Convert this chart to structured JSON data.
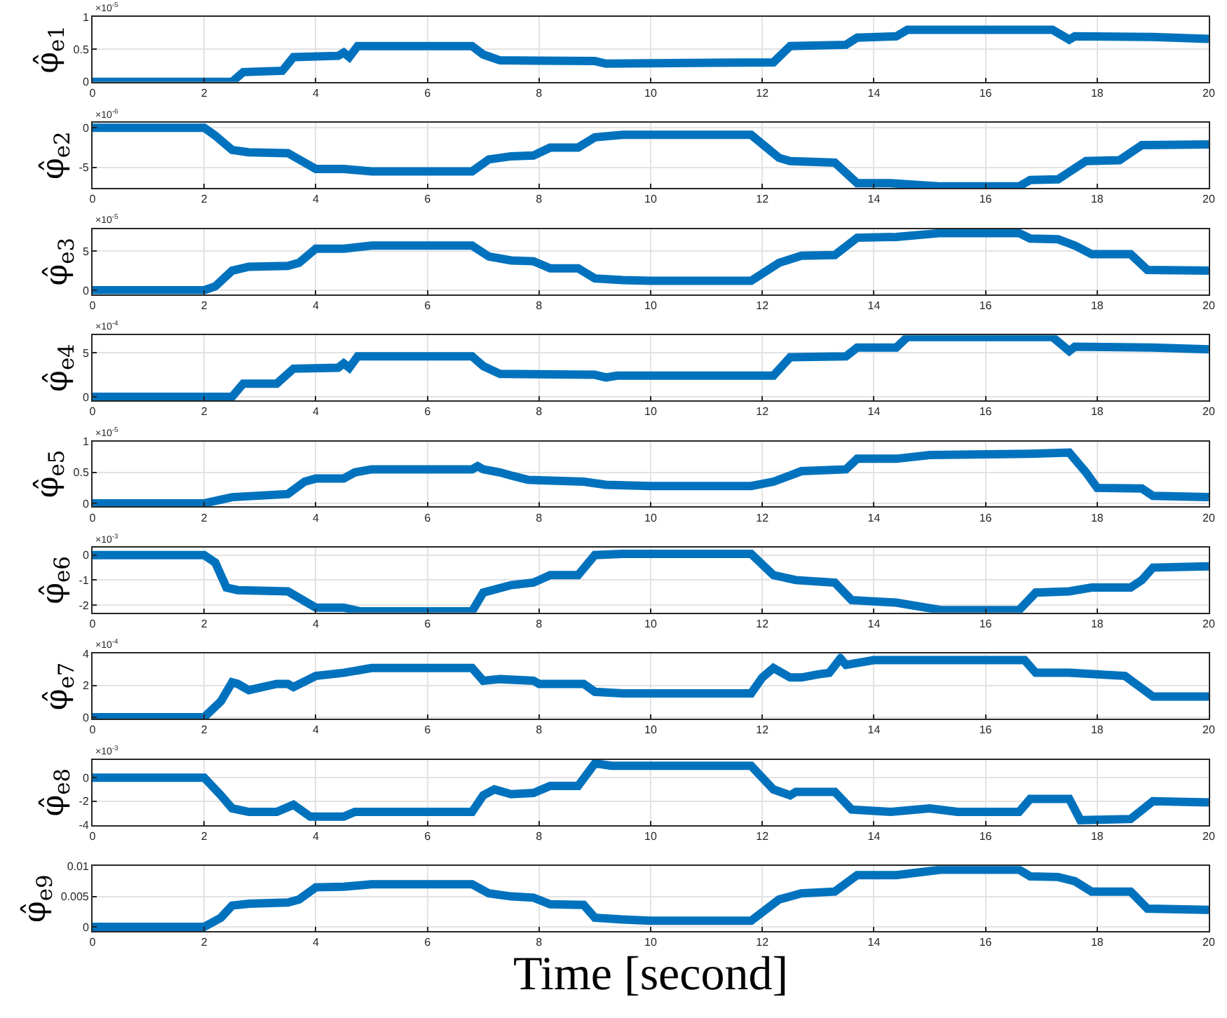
{
  "chart_data": [
    {
      "type": "line",
      "ylabel": "φ̂$_{e1}$",
      "annotations": [
        "×10$^{-5}$"
      ],
      "xlim": [
        0,
        20
      ],
      "xticks": [
        0,
        2,
        4,
        6,
        8,
        10,
        12,
        14,
        16,
        18,
        20
      ],
      "ylim": [
        0,
        1
      ],
      "yticks": [
        0,
        0.5,
        1
      ],
      "grid": true,
      "tick_labels": true,
      "x": [
        0,
        2.5,
        2.7,
        3.4,
        3.6,
        4.4,
        4.5,
        4.6,
        4.75,
        6.8,
        7.0,
        7.3,
        9.0,
        9.2,
        12.2,
        12.5,
        13.5,
        13.7,
        14.4,
        14.6,
        17.2,
        17.5,
        17.6,
        19,
        20
      ],
      "series": [
        {
          "color": "#0072bd",
          "values": [
            0,
            0,
            0.15,
            0.17,
            0.38,
            0.4,
            0.45,
            0.38,
            0.55,
            0.55,
            0.42,
            0.33,
            0.32,
            0.28,
            0.3,
            0.55,
            0.57,
            0.68,
            0.7,
            0.8,
            0.8,
            0.65,
            0.7,
            0.69,
            0.66
          ]
        }
      ]
    },
    {
      "type": "line",
      "ylabel": "φ̂$_{e2}$",
      "annotations": [
        "×10$^{-6}$"
      ],
      "xlim": [
        0,
        20
      ],
      "xticks": [
        0,
        2,
        4,
        6,
        8,
        10,
        12,
        14,
        16,
        18,
        20
      ],
      "ylim": [
        -7.6,
        0.6
      ],
      "yticks": [
        -5,
        0
      ],
      "grid": true,
      "x": [
        0,
        2.0,
        2.2,
        2.5,
        2.8,
        3.5,
        4,
        4.5,
        5,
        6.8,
        7.1,
        7.5,
        7.9,
        8.2,
        8.7,
        9.0,
        9.5,
        11.8,
        12.3,
        12.5,
        13.3,
        13.7,
        14.3,
        15.2,
        16.6,
        16.8,
        17.3,
        17.8,
        18.4,
        18.8,
        20
      ],
      "series": [
        {
          "color": "#0072bd",
          "values": [
            0,
            0,
            -1,
            -2.8,
            -3.1,
            -3.2,
            -5.2,
            -5.2,
            -5.5,
            -5.5,
            -4,
            -3.6,
            -3.5,
            -2.5,
            -2.5,
            -1.2,
            -0.9,
            -0.9,
            -3.8,
            -4.2,
            -4.4,
            -7,
            -7,
            -7.4,
            -7.4,
            -6.6,
            -6.5,
            -4.2,
            -4.1,
            -2.2,
            -2.1
          ]
        }
      ]
    },
    {
      "type": "line",
      "ylabel": "φ̂$_{e3}$",
      "annotations": [
        "×10$^{-5}$"
      ],
      "xlim": [
        0,
        20
      ],
      "xticks": [
        0,
        2,
        4,
        6,
        8,
        10,
        12,
        14,
        16,
        18,
        20
      ],
      "ylim": [
        -0.5,
        7.8
      ],
      "yticks": [
        0,
        5
      ],
      "grid": true,
      "x": [
        0,
        2.0,
        2.2,
        2.5,
        2.8,
        3.5,
        3.7,
        4,
        4.5,
        5,
        6.8,
        7.1,
        7.5,
        7.9,
        8.2,
        8.7,
        9.0,
        9.5,
        10,
        11.8,
        12.3,
        12.7,
        13.3,
        13.7,
        14.4,
        15.2,
        16.6,
        16.8,
        17.3,
        17.6,
        17.9,
        18.6,
        18.9,
        20
      ],
      "series": [
        {
          "color": "#0072bd",
          "values": [
            0,
            0,
            0.5,
            2.5,
            3,
            3.1,
            3.5,
            5.3,
            5.3,
            5.7,
            5.7,
            4.3,
            3.8,
            3.7,
            2.8,
            2.8,
            1.5,
            1.3,
            1.2,
            1.2,
            3.5,
            4.4,
            4.5,
            6.7,
            6.8,
            7.3,
            7.3,
            6.6,
            6.5,
            5.7,
            4.6,
            4.6,
            2.6,
            2.5
          ]
        }
      ]
    },
    {
      "type": "line",
      "ylabel": "φ̂$_{e4}$",
      "annotations": [
        "×10$^{-4}$"
      ],
      "xlim": [
        0,
        20
      ],
      "xticks": [
        0,
        2,
        4,
        6,
        8,
        10,
        12,
        14,
        16,
        18,
        20
      ],
      "ylim": [
        -0.4,
        7
      ],
      "yticks": [
        0,
        5
      ],
      "grid": true,
      "x": [
        0,
        2.5,
        2.7,
        3.3,
        3.6,
        4.4,
        4.5,
        4.6,
        4.75,
        6.8,
        7.0,
        7.3,
        9.0,
        9.2,
        9.4,
        12.2,
        12.5,
        13.5,
        13.7,
        14.4,
        14.6,
        17.2,
        17.5,
        17.6,
        19,
        20
      ],
      "series": [
        {
          "color": "#0072bd",
          "values": [
            0,
            0,
            1.5,
            1.5,
            3.2,
            3.3,
            3.8,
            3.3,
            4.6,
            4.6,
            3.5,
            2.6,
            2.5,
            2.2,
            2.4,
            2.4,
            4.5,
            4.6,
            5.6,
            5.6,
            6.8,
            6.8,
            5.2,
            5.7,
            5.6,
            5.4
          ]
        }
      ]
    },
    {
      "type": "line",
      "ylabel": "φ̂$_{e5}$",
      "annotations": [
        "×10$^{-5}$"
      ],
      "xlim": [
        0,
        20
      ],
      "xticks": [
        0,
        2,
        4,
        6,
        8,
        10,
        12,
        14,
        16,
        18,
        20
      ],
      "ylim": [
        -0.05,
        1
      ],
      "yticks": [
        0,
        0.5,
        1
      ],
      "grid": true,
      "x": [
        0,
        2,
        2.5,
        3.5,
        3.8,
        4,
        4.5,
        4.7,
        5,
        6.8,
        6.9,
        7,
        7.3,
        7.5,
        7.8,
        8.8,
        9.2,
        10,
        11.8,
        12.2,
        12.5,
        12.7,
        13.5,
        13.7,
        14.4,
        15,
        16.8,
        17.5,
        17.8,
        18,
        18.8,
        19,
        20
      ],
      "series": [
        {
          "color": "#0072bd",
          "values": [
            0,
            0,
            0.1,
            0.15,
            0.35,
            0.4,
            0.4,
            0.5,
            0.55,
            0.55,
            0.6,
            0.55,
            0.5,
            0.45,
            0.38,
            0.35,
            0.3,
            0.28,
            0.28,
            0.35,
            0.45,
            0.52,
            0.55,
            0.72,
            0.72,
            0.78,
            0.8,
            0.82,
            0.5,
            0.25,
            0.24,
            0.12,
            0.1
          ]
        }
      ]
    },
    {
      "type": "line",
      "ylabel": "φ̂$_{e6}$",
      "annotations": [
        "×10$^{-3}$"
      ],
      "xlim": [
        0,
        20
      ],
      "xticks": [
        0,
        2,
        4,
        6,
        8,
        10,
        12,
        14,
        16,
        18,
        20
      ],
      "ylim": [
        -2.3,
        0.3
      ],
      "yticks": [
        -2,
        -1,
        0
      ],
      "grid": true,
      "x": [
        0,
        2.0,
        2.2,
        2.4,
        2.6,
        3.5,
        4,
        4.5,
        4.8,
        6.8,
        7,
        7.5,
        7.9,
        8.2,
        8.7,
        9.0,
        9.5,
        11.8,
        12.2,
        12.6,
        13.3,
        13.6,
        14.4,
        15.2,
        16.6,
        16.9,
        17.5,
        17.9,
        18.6,
        18.8,
        19,
        20
      ],
      "series": [
        {
          "color": "#0072bd",
          "values": [
            0,
            0,
            -0.3,
            -1.3,
            -1.4,
            -1.45,
            -2.1,
            -2.1,
            -2.25,
            -2.25,
            -1.5,
            -1.2,
            -1.1,
            -0.8,
            -0.8,
            0,
            0.05,
            0.05,
            -0.8,
            -1,
            -1.1,
            -1.8,
            -1.9,
            -2.2,
            -2.2,
            -1.5,
            -1.45,
            -1.3,
            -1.3,
            -1.0,
            -0.5,
            -0.45
          ]
        }
      ]
    },
    {
      "type": "line",
      "ylabel": "φ̂$_{e7}$",
      "annotations": [
        "×10$^{-4}$"
      ],
      "xlim": [
        0,
        20
      ],
      "xticks": [
        0,
        2,
        4,
        6,
        8,
        10,
        12,
        14,
        16,
        18,
        20
      ],
      "ylim": [
        -0.1,
        4
      ],
      "yticks": [
        0,
        2,
        4
      ],
      "grid": true,
      "x": [
        0,
        2,
        2.3,
        2.5,
        2.6,
        2.8,
        3.3,
        3.5,
        3.6,
        4,
        4.5,
        5,
        6.8,
        7,
        7.3,
        7.9,
        8.0,
        8.8,
        9,
        9.5,
        11.8,
        12,
        12.2,
        12.5,
        12.7,
        13,
        13.2,
        13.4,
        13.5,
        14,
        16.7,
        16.9,
        17.5,
        18.5,
        19,
        20
      ],
      "series": [
        {
          "color": "#0072bd",
          "values": [
            0,
            0,
            1,
            2.2,
            2.1,
            1.7,
            2.1,
            2.1,
            1.9,
            2.6,
            2.8,
            3.1,
            3.1,
            2.3,
            2.4,
            2.3,
            2.1,
            2.1,
            1.6,
            1.5,
            1.5,
            2.5,
            3.1,
            2.5,
            2.5,
            2.7,
            2.8,
            3.7,
            3.3,
            3.6,
            3.6,
            2.8,
            2.8,
            2.6,
            1.3,
            1.3
          ]
        }
      ]
    },
    {
      "type": "line",
      "ylabel": "φ̂$_{e8}$",
      "annotations": [
        "×10$^{-3}$"
      ],
      "xlim": [
        0,
        20
      ],
      "xticks": [
        0,
        2,
        4,
        6,
        8,
        10,
        12,
        14,
        16,
        18,
        20
      ],
      "ylim": [
        -4,
        1.5
      ],
      "yticks": [
        -4,
        -2,
        0
      ],
      "grid": true,
      "x": [
        0,
        2,
        2.3,
        2.5,
        2.8,
        3.3,
        3.6,
        3.9,
        4.5,
        4.7,
        6.8,
        7,
        7.2,
        7.5,
        7.9,
        8.2,
        8.7,
        9,
        9.3,
        11.8,
        12.2,
        12.5,
        12.6,
        13.3,
        13.6,
        14.3,
        15,
        15.5,
        16.6,
        16.8,
        17.5,
        17.7,
        18.6,
        19,
        20
      ],
      "series": [
        {
          "color": "#0072bd",
          "values": [
            0,
            0,
            -1.5,
            -2.6,
            -2.9,
            -2.9,
            -2.3,
            -3.3,
            -3.3,
            -2.9,
            -2.9,
            -1.5,
            -1.0,
            -1.4,
            -1.3,
            -0.7,
            -0.7,
            1.2,
            1.0,
            1.0,
            -1.0,
            -1.5,
            -1.2,
            -1.2,
            -2.7,
            -2.9,
            -2.6,
            -2.9,
            -2.9,
            -1.8,
            -1.8,
            -3.6,
            -3.5,
            -2.0,
            -2.1
          ]
        }
      ]
    },
    {
      "type": "line",
      "ylabel": "φ̂$_{e9}$",
      "xlabel": "Time [second]",
      "xlim": [
        0,
        20
      ],
      "xticks": [
        0,
        2,
        4,
        6,
        8,
        10,
        12,
        14,
        16,
        18,
        20
      ],
      "ylim": [
        -0.0007,
        0.01
      ],
      "yticks": [
        0,
        0.005,
        0.01
      ],
      "grid": true,
      "x": [
        0,
        2,
        2.3,
        2.5,
        2.8,
        3.5,
        3.7,
        4,
        4.5,
        5,
        6.8,
        7.1,
        7.5,
        7.9,
        8.2,
        8.8,
        9.0,
        9.5,
        10,
        11.8,
        12.3,
        12.7,
        13.3,
        13.7,
        14.4,
        15.2,
        16.6,
        16.8,
        17.3,
        17.6,
        17.9,
        18.6,
        18.9,
        20
      ],
      "series": [
        {
          "color": "#0072bd",
          "values": [
            0,
            0,
            0.0015,
            0.0035,
            0.0038,
            0.004,
            0.0045,
            0.0065,
            0.0066,
            0.007,
            0.007,
            0.0055,
            0.005,
            0.0048,
            0.0037,
            0.0036,
            0.0015,
            0.0012,
            0.001,
            0.001,
            0.0045,
            0.0055,
            0.0058,
            0.0085,
            0.0085,
            0.0094,
            0.0094,
            0.0083,
            0.0082,
            0.0075,
            0.0058,
            0.0058,
            0.003,
            0.0028
          ]
        }
      ]
    }
  ]
}
